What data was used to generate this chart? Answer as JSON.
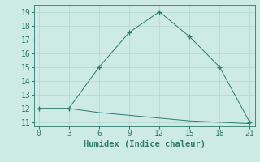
{
  "line1_x": [
    0,
    3,
    6,
    9,
    12,
    15,
    18,
    21
  ],
  "line1_y": [
    12,
    12,
    15,
    17.5,
    19,
    17.2,
    15,
    11
  ],
  "line2_x": [
    0,
    3,
    6,
    9,
    12,
    15,
    18,
    21
  ],
  "line2_y": [
    12,
    12,
    11.7,
    11.5,
    11.3,
    11.1,
    11.0,
    10.9
  ],
  "line_color": "#2d7a6e",
  "bg_color": "#cdeae5",
  "grid_color": "#b0d8d2",
  "xlabel": "Humidex (Indice chaleur)",
  "xlim": [
    -0.5,
    21.5
  ],
  "ylim": [
    10.7,
    19.5
  ],
  "xticks": [
    0,
    3,
    6,
    9,
    12,
    15,
    18,
    21
  ],
  "yticks": [
    11,
    12,
    13,
    14,
    15,
    16,
    17,
    18,
    19
  ],
  "xlabel_fontsize": 7.5,
  "tick_fontsize": 7
}
